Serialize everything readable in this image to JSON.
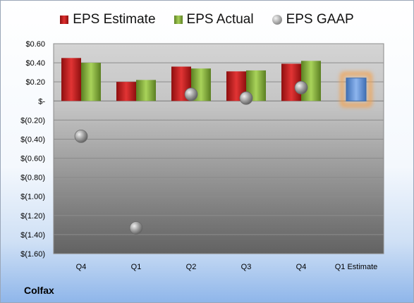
{
  "legend": {
    "estimate": "EPS Estimate",
    "actual": "EPS Actual",
    "gaap": "EPS GAAP"
  },
  "company": "Colfax",
  "colors": {
    "estimate": "#c81e1e",
    "actual": "#8db73c",
    "gaap": "#9a9a9a",
    "forecast": "#6f9fe0",
    "forecast_glow": "#f5a04a"
  },
  "chart_data": {
    "type": "bar",
    "categories": [
      "Q4",
      "Q1",
      "Q2",
      "Q3",
      "Q4",
      "Q1 Estimate"
    ],
    "series": [
      {
        "name": "EPS Estimate",
        "values": [
          0.45,
          0.2,
          0.36,
          0.31,
          0.39,
          null
        ]
      },
      {
        "name": "EPS Actual",
        "values": [
          0.4,
          0.22,
          0.34,
          0.32,
          0.42,
          0.24
        ]
      },
      {
        "name": "EPS GAAP",
        "type": "scatter",
        "values": [
          -0.37,
          -1.33,
          0.07,
          0.03,
          0.14,
          null
        ]
      }
    ],
    "ylim": [
      -1.6,
      0.6
    ],
    "yticks": [
      0.6,
      0.4,
      0.2,
      0,
      -0.2,
      -0.4,
      -0.6,
      -0.8,
      -1.0,
      -1.2,
      -1.4,
      -1.6
    ],
    "ytick_labels": [
      "$0.60",
      "$0.40",
      "$0.20",
      "$-",
      "$(0.20)",
      "$(0.40)",
      "$(0.60)",
      "$(0.80)",
      "$(1.00)",
      "$(1.20)",
      "$(1.40)",
      "$(1.60)"
    ],
    "legend_position": "top",
    "grid": true
  }
}
